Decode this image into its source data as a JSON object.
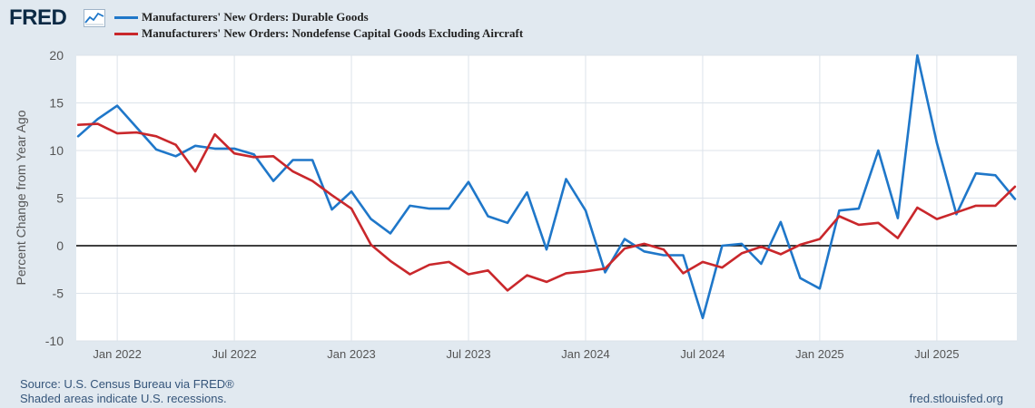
{
  "header": {
    "logo_text": "FRED",
    "logo_icon": "chart-line-icon"
  },
  "footer": {
    "source": "Source: U.S. Census Bureau via FRED®",
    "note": "Shaded areas indicate U.S. recessions.",
    "site": "fred.stlouisfed.org"
  },
  "colors": {
    "background": "#e1e9f0",
    "plot_background": "#ffffff",
    "grid": "#dce3ea",
    "zero_line": "#000000"
  },
  "chart_data": {
    "type": "line",
    "title": "",
    "xlabel": "",
    "ylabel": "Percent Change from Year Ago",
    "ylim": [
      -10,
      20
    ],
    "yticks": [
      -10,
      -5,
      0,
      5,
      10,
      15,
      20
    ],
    "grid": true,
    "legend_position": "top-left",
    "x_tick_labels": [
      "Jan 2022",
      "Jul 2022",
      "Jan 2023",
      "Jul 2023",
      "Jan 2024",
      "Jul 2024",
      "Jan 2025",
      "Jul 2025"
    ],
    "x_tick_indices": [
      2,
      8,
      14,
      20,
      26,
      32,
      38,
      44
    ],
    "x_range": [
      -0.1,
      48.1
    ],
    "series": [
      {
        "name": "Manufacturers' New Orders: Durable Goods",
        "color": "#1f77c9",
        "values": [
          11.5,
          13.3,
          14.7,
          12.4,
          10.1,
          9.4,
          10.5,
          10.2,
          10.2,
          9.6,
          6.8,
          9.0,
          9.0,
          3.8,
          5.7,
          2.8,
          1.3,
          4.2,
          3.9,
          3.9,
          6.7,
          3.1,
          2.4,
          5.6,
          -0.4,
          7.0,
          3.7,
          -2.8,
          0.7,
          -0.6,
          -1.0,
          -1.0,
          -7.6,
          0.0,
          0.2,
          -1.9,
          2.5,
          -3.4,
          -4.5,
          3.7,
          3.9,
          10.0,
          2.9,
          20.0,
          10.8,
          3.3,
          7.6,
          7.4,
          4.9
        ]
      },
      {
        "name": "Manufacturers' New Orders: Nondefense Capital Goods Excluding Aircraft",
        "color": "#c9272b",
        "values": [
          12.7,
          12.8,
          11.8,
          11.9,
          11.5,
          10.6,
          7.8,
          11.7,
          9.7,
          9.3,
          9.4,
          7.8,
          6.8,
          5.3,
          3.9,
          0.1,
          -1.6,
          -3.0,
          -2.0,
          -1.7,
          -3.0,
          -2.6,
          -4.7,
          -3.1,
          -3.8,
          -2.9,
          -2.7,
          -2.4,
          -0.3,
          0.2,
          -0.4,
          -2.9,
          -1.7,
          -2.3,
          -0.8,
          -0.1,
          -0.9,
          0.1,
          0.7,
          3.1,
          2.2,
          2.4,
          0.8,
          4.0,
          2.8,
          3.5,
          4.2,
          4.2,
          6.2
        ]
      }
    ]
  }
}
